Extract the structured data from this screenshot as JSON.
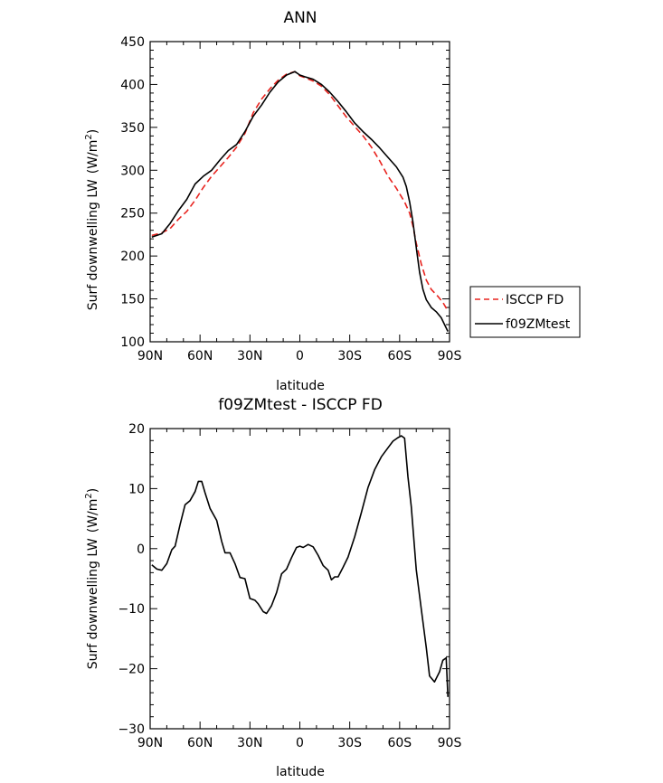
{
  "chart_data": [
    {
      "type": "line",
      "title": "ANN",
      "xlabel": "latitude",
      "ylabel": "Surf downwelling LW",
      "ylabel_unit_base": "(W/m",
      "ylabel_unit_sup": "2",
      "ylabel_unit_close": ")",
      "xlim": [
        90,
        -90
      ],
      "ylim": [
        100,
        450
      ],
      "xticks": [
        90,
        60,
        30,
        0,
        -30,
        -60,
        -90
      ],
      "xtick_labels": [
        "90N",
        "60N",
        "30N",
        "0",
        "30S",
        "60S",
        "90S"
      ],
      "yticks": [
        100,
        150,
        200,
        250,
        300,
        350,
        400,
        450
      ],
      "ytick_labels": [
        "100",
        "150",
        "200",
        "250",
        "300",
        "350",
        "400",
        "450"
      ],
      "legend_position": "outside-right",
      "series": [
        {
          "name": "ISCCP FD",
          "color": "#e8231e",
          "dash": "dashed",
          "x": [
            89,
            83,
            78,
            73,
            68,
            63,
            58,
            53,
            48,
            43,
            38,
            33,
            28,
            23,
            18,
            13,
            8,
            3,
            0,
            -3,
            -8,
            -13,
            -18,
            -23,
            -28,
            -33,
            -38,
            -43,
            -48,
            -53,
            -58,
            -63,
            -66,
            -68,
            -70,
            -73,
            -76,
            -79,
            -83,
            -86,
            -89
          ],
          "y": [
            224,
            227,
            232,
            243,
            252,
            265,
            280,
            293,
            304,
            315,
            327,
            343,
            367,
            383,
            395,
            405,
            412,
            415,
            410,
            408,
            404,
            398,
            388,
            375,
            362,
            351,
            340,
            327,
            311,
            293,
            279,
            263,
            250,
            235,
            215,
            191,
            172,
            161,
            153,
            146,
            136
          ]
        },
        {
          "name": "f09ZMtest",
          "color": "#000000",
          "dash": "solid",
          "x": [
            89,
            83,
            78,
            73,
            68,
            63,
            58,
            53,
            48,
            43,
            38,
            33,
            28,
            23,
            18,
            13,
            8,
            3,
            0,
            -3,
            -8,
            -13,
            -18,
            -23,
            -28,
            -33,
            -38,
            -43,
            -48,
            -53,
            -58,
            -62,
            -64,
            -66,
            -68,
            -70,
            -72,
            -74,
            -76,
            -79,
            -82,
            -85,
            -89
          ],
          "y": [
            222,
            226,
            238,
            253,
            266,
            284,
            293,
            300,
            312,
            323,
            330,
            345,
            363,
            376,
            391,
            403,
            411,
            415,
            411,
            409,
            406,
            400,
            391,
            380,
            368,
            355,
            345,
            336,
            326,
            315,
            304,
            292,
            281,
            263,
            240,
            210,
            181,
            161,
            149,
            140,
            135,
            128,
            112
          ]
        }
      ]
    },
    {
      "type": "line",
      "title": "f09ZMtest - ISCCP FD",
      "xlabel": "latitude",
      "ylabel": "Surf downwelling LW",
      "ylabel_unit_base": "(W/m",
      "ylabel_unit_sup": "2",
      "ylabel_unit_close": ")",
      "xlim": [
        90,
        -90
      ],
      "ylim": [
        -30,
        20
      ],
      "xticks": [
        90,
        60,
        30,
        0,
        -30,
        -60,
        -90
      ],
      "xtick_labels": [
        "90N",
        "60N",
        "30N",
        "0",
        "30S",
        "60S",
        "90S"
      ],
      "yticks": [
        -30,
        -20,
        -10,
        0,
        10,
        20
      ],
      "ytick_labels": [
        "−30",
        "−20",
        "−10",
        "0",
        "10",
        "20"
      ],
      "series": [
        {
          "color": "#000000",
          "dash": "solid",
          "x": [
            89,
            86,
            83,
            80,
            77,
            75,
            72,
            69,
            66,
            63,
            61,
            59,
            57,
            54,
            50,
            47,
            45,
            42,
            39,
            36,
            33,
            30,
            27,
            25,
            22,
            20,
            17,
            14,
            11,
            8,
            5,
            2,
            0,
            -2,
            -5,
            -8,
            -11,
            -14,
            -17,
            -19,
            -21,
            -23,
            -26,
            -29,
            -33,
            -37,
            -41,
            -45,
            -49,
            -53,
            -56,
            -59,
            -61,
            -63,
            -65,
            -67,
            -70,
            -73,
            -76,
            -78,
            -81,
            -84,
            -86,
            -88,
            -89
          ],
          "y": [
            -2.7,
            -3.4,
            -3.6,
            -2.5,
            -0.2,
            0.4,
            4.0,
            7.3,
            8.0,
            9.5,
            11.2,
            11.2,
            9.3,
            6.7,
            4.7,
            1.2,
            -0.7,
            -0.7,
            -2.5,
            -4.8,
            -5.0,
            -8.3,
            -8.6,
            -9.2,
            -10.5,
            -10.8,
            -9.5,
            -7.3,
            -4.2,
            -3.4,
            -1.5,
            0.2,
            0.4,
            0.2,
            0.7,
            0.3,
            -1.1,
            -2.8,
            -3.6,
            -5.2,
            -4.7,
            -4.7,
            -3.1,
            -1.4,
            2.0,
            6.0,
            10.2,
            13.2,
            15.3,
            16.8,
            17.9,
            18.5,
            18.8,
            18.4,
            12.0,
            7.0,
            -3.5,
            -10.0,
            -16.5,
            -21.2,
            -22.2,
            -20.5,
            -18.6,
            -18.2,
            -24.7
          ]
        }
      ]
    }
  ]
}
